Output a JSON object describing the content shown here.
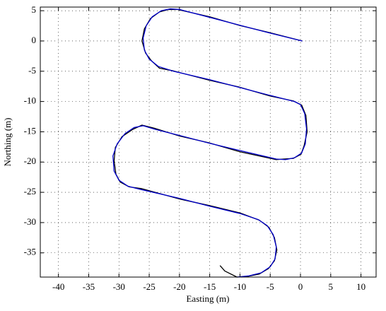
{
  "chart_data": {
    "type": "line",
    "xlabel": "Easting (m)",
    "ylabel": "Northing (m)",
    "xlim": [
      -43,
      12.5
    ],
    "ylim": [
      -39,
      5.6
    ],
    "xticks": [
      -40,
      -35,
      -30,
      -25,
      -20,
      -15,
      -10,
      -5,
      0,
      5,
      10
    ],
    "yticks": [
      -35,
      -30,
      -25,
      -20,
      -15,
      -10,
      -5,
      0,
      5
    ],
    "grid": true,
    "series": [
      {
        "color": "#000000",
        "x": [
          0.3,
          -5,
          -10,
          -15,
          -20.3,
          -21.8,
          -23.3,
          -24.8,
          -25.8,
          -26.2,
          -25.6,
          -24.6,
          -23.3,
          -21.2,
          -15,
          -10.2,
          -5,
          -1.2,
          0.2,
          0.9,
          1.1,
          0.6,
          0.1,
          -1.2,
          -2.8,
          -4,
          -10,
          -15.2,
          -20,
          -24.2,
          -26.2,
          -27.7,
          -29.5,
          -30.6,
          -30.8,
          -30.5,
          -29.8,
          -28.3,
          -26.2,
          -20,
          -15,
          -10,
          -6.8,
          -5.2,
          -4.3,
          -3.9,
          -4.3,
          -5.3,
          -6.8,
          -8.8,
          -10.5,
          -12.5,
          -13.3
        ],
        "values": [
          0,
          1.35,
          2.55,
          4.0,
          5.2,
          5.2,
          4.8,
          3.7,
          2.0,
          0.0,
          -2.0,
          -3.3,
          -4.5,
          -4.9,
          -6.5,
          -7.6,
          -9.1,
          -9.9,
          -10.6,
          -12.3,
          -15,
          -17.3,
          -18.7,
          -19.4,
          -19.5,
          -19.6,
          -18.3,
          -16.8,
          -15.7,
          -14.4,
          -13.9,
          -14.6,
          -15.8,
          -17.6,
          -19.8,
          -22,
          -23.3,
          -24.1,
          -24.4,
          -26.1,
          -27.2,
          -28.4,
          -29.6,
          -30.8,
          -32.5,
          -34.5,
          -36.3,
          -37.6,
          -38.5,
          -38.9,
          -39,
          -38,
          -37.1
        ]
      },
      {
        "color": "#0000cc",
        "x": [
          0.3,
          -5,
          -10,
          -15,
          -20,
          -21.5,
          -23,
          -24.5,
          -25.5,
          -26,
          -25.8,
          -25,
          -23.5,
          -21,
          -15,
          -10,
          -5,
          -1,
          0,
          0.7,
          1,
          0.8,
          0.2,
          -1,
          -2.5,
          -4,
          -10,
          -15,
          -20,
          -24,
          -26,
          -27.5,
          -29,
          -30.3,
          -31,
          -30.8,
          -30,
          -28.5,
          -26.5,
          -20,
          -15,
          -10,
          -7,
          -5.5,
          -4.5,
          -4,
          -4.2,
          -5,
          -6.5,
          -8.5,
          -10.5
        ],
        "values": [
          0,
          1.3,
          2.6,
          3.9,
          5.2,
          5.3,
          5.0,
          4.0,
          2.5,
          0.5,
          -1.5,
          -3,
          -4.2,
          -5,
          -6.4,
          -7.7,
          -9,
          -10,
          -10.5,
          -12,
          -14.5,
          -17,
          -18.5,
          -19.3,
          -19.6,
          -19.5,
          -18.1,
          -16.9,
          -15.6,
          -14.6,
          -14,
          -14.3,
          -15.3,
          -17,
          -19,
          -21.5,
          -23,
          -24,
          -24.5,
          -26,
          -27.3,
          -28.5,
          -29.5,
          -30.5,
          -32,
          -34,
          -36,
          -37.3,
          -38.3,
          -38.8,
          -39
        ]
      }
    ]
  }
}
